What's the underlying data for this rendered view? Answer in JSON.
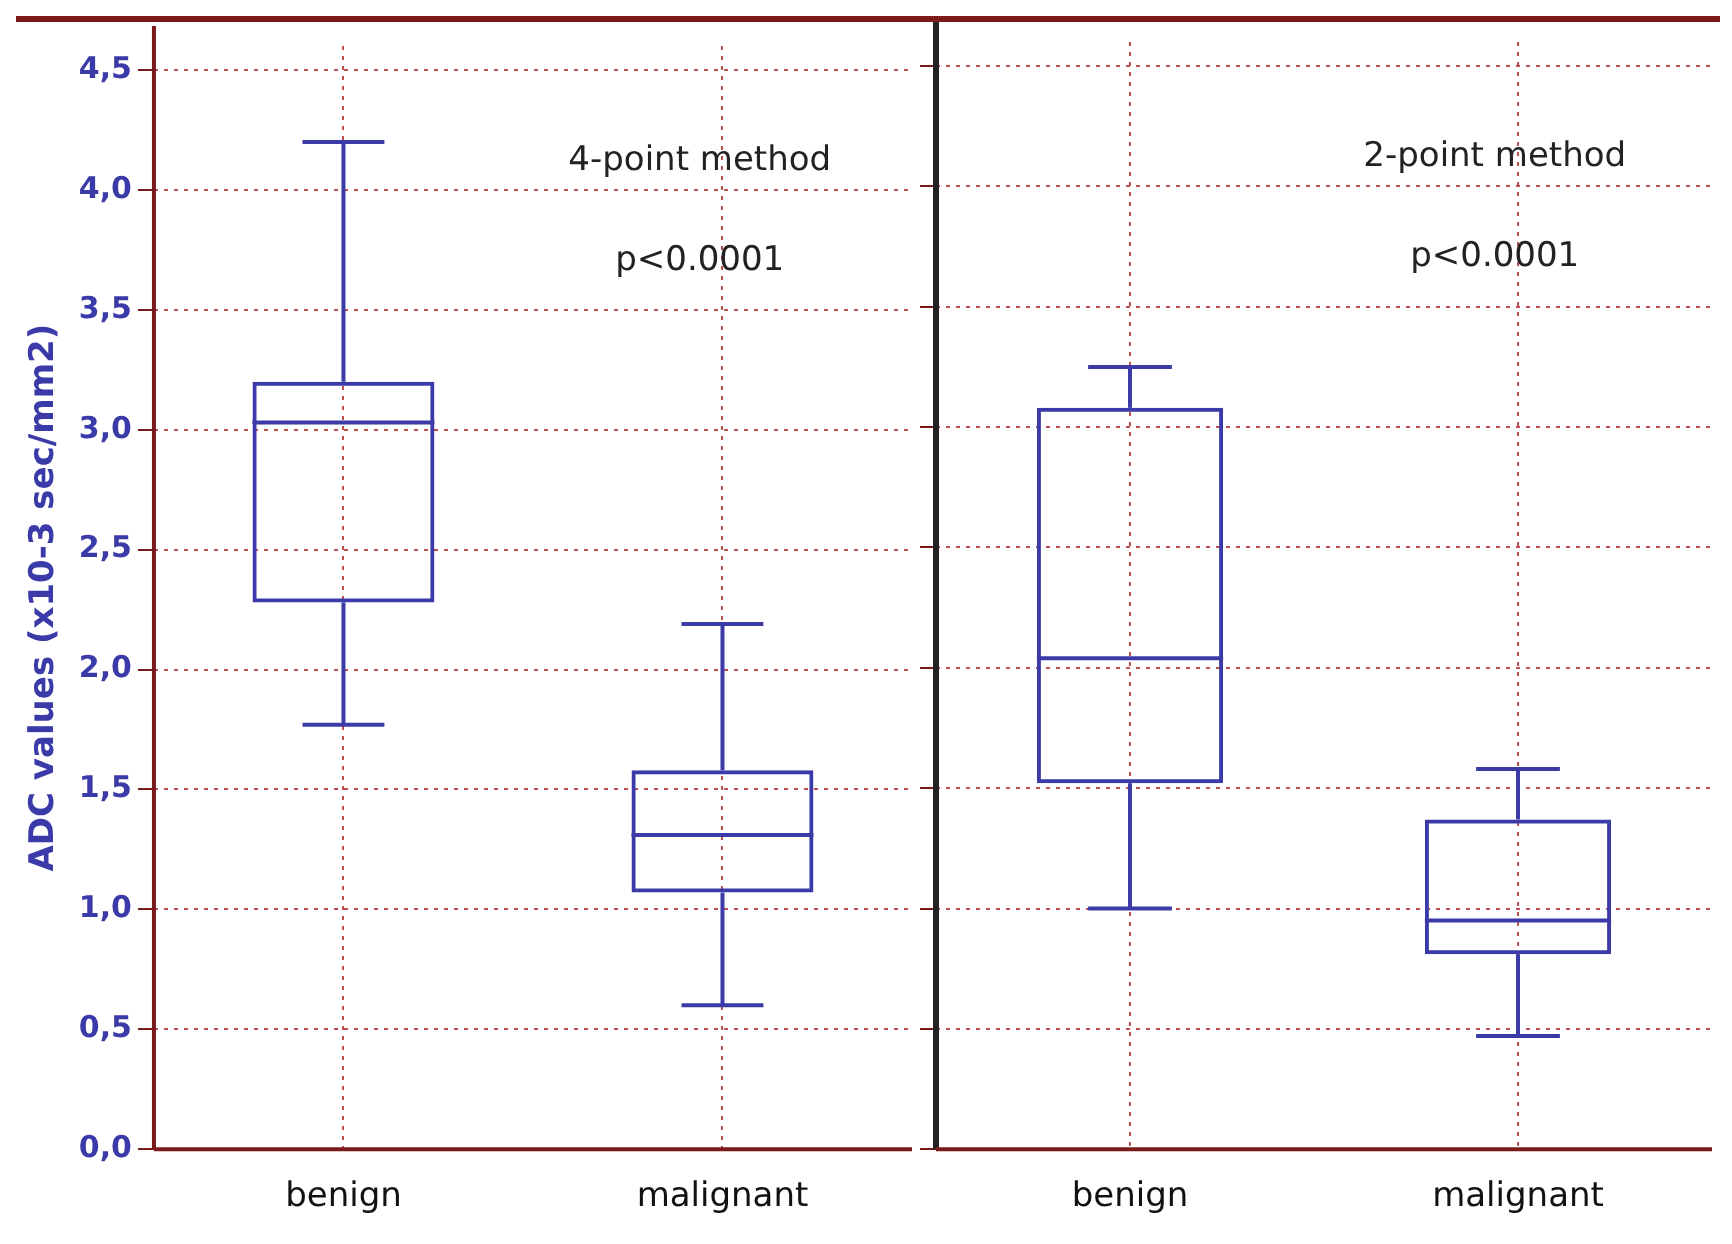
{
  "chart_data": [
    {
      "type": "box",
      "ylabel": "ADC values (x10-3 sec/mm2)",
      "categories": [
        "benign",
        "malignant"
      ],
      "color": "#3a3aa8",
      "annotations": [
        "4-point method",
        "p<0.0001"
      ],
      "ylim": [
        0,
        4.6
      ],
      "yticks": [
        {
          "value": 0,
          "label": "0,0"
        },
        {
          "value": 0.5,
          "label": "0,5"
        },
        {
          "value": 1,
          "label": "1,0"
        },
        {
          "value": 1.5,
          "label": "1,5"
        },
        {
          "value": 2,
          "label": "2,0"
        },
        {
          "value": 2.5,
          "label": "2,5"
        },
        {
          "value": 3,
          "label": "3,0"
        },
        {
          "value": 3.5,
          "label": "3,5"
        },
        {
          "value": 4,
          "label": "4,0"
        },
        {
          "value": 4.5,
          "label": "4,5"
        }
      ],
      "grid": true,
      "boxes": [
        {
          "low": 1.77,
          "q1": 2.28,
          "median": 3.03,
          "q3": 3.2,
          "high": 4.2
        },
        {
          "low": 0.6,
          "q1": 1.07,
          "median": 1.31,
          "q3": 1.58,
          "high": 2.19
        }
      ]
    },
    {
      "type": "box",
      "categories": [
        "benign",
        "malignant"
      ],
      "color": "#3a3aa8",
      "annotations": [
        "2-point method",
        "p<0.0001"
      ],
      "ylim": [
        0,
        4.6
      ],
      "yticks": [
        {
          "value": 0,
          "label": null
        },
        {
          "value": 0.5,
          "label": null
        },
        {
          "value": 1,
          "label": null
        },
        {
          "value": 1.5,
          "label": null
        },
        {
          "value": 2,
          "label": null
        },
        {
          "value": 2.5,
          "label": null
        },
        {
          "value": 3,
          "label": null
        },
        {
          "value": 3.5,
          "label": null
        },
        {
          "value": 4,
          "label": null
        },
        {
          "value": 4.5,
          "label": null
        }
      ],
      "grid": true,
      "tick_labels": "x",
      "boxes": [
        {
          "low": 1.0,
          "q1": 1.52,
          "median": 2.04,
          "q3": 3.08,
          "high": 3.25
        },
        {
          "low": 0.47,
          "q1": 0.81,
          "median": 0.95,
          "q3": 1.37,
          "high": 1.58
        }
      ]
    }
  ]
}
